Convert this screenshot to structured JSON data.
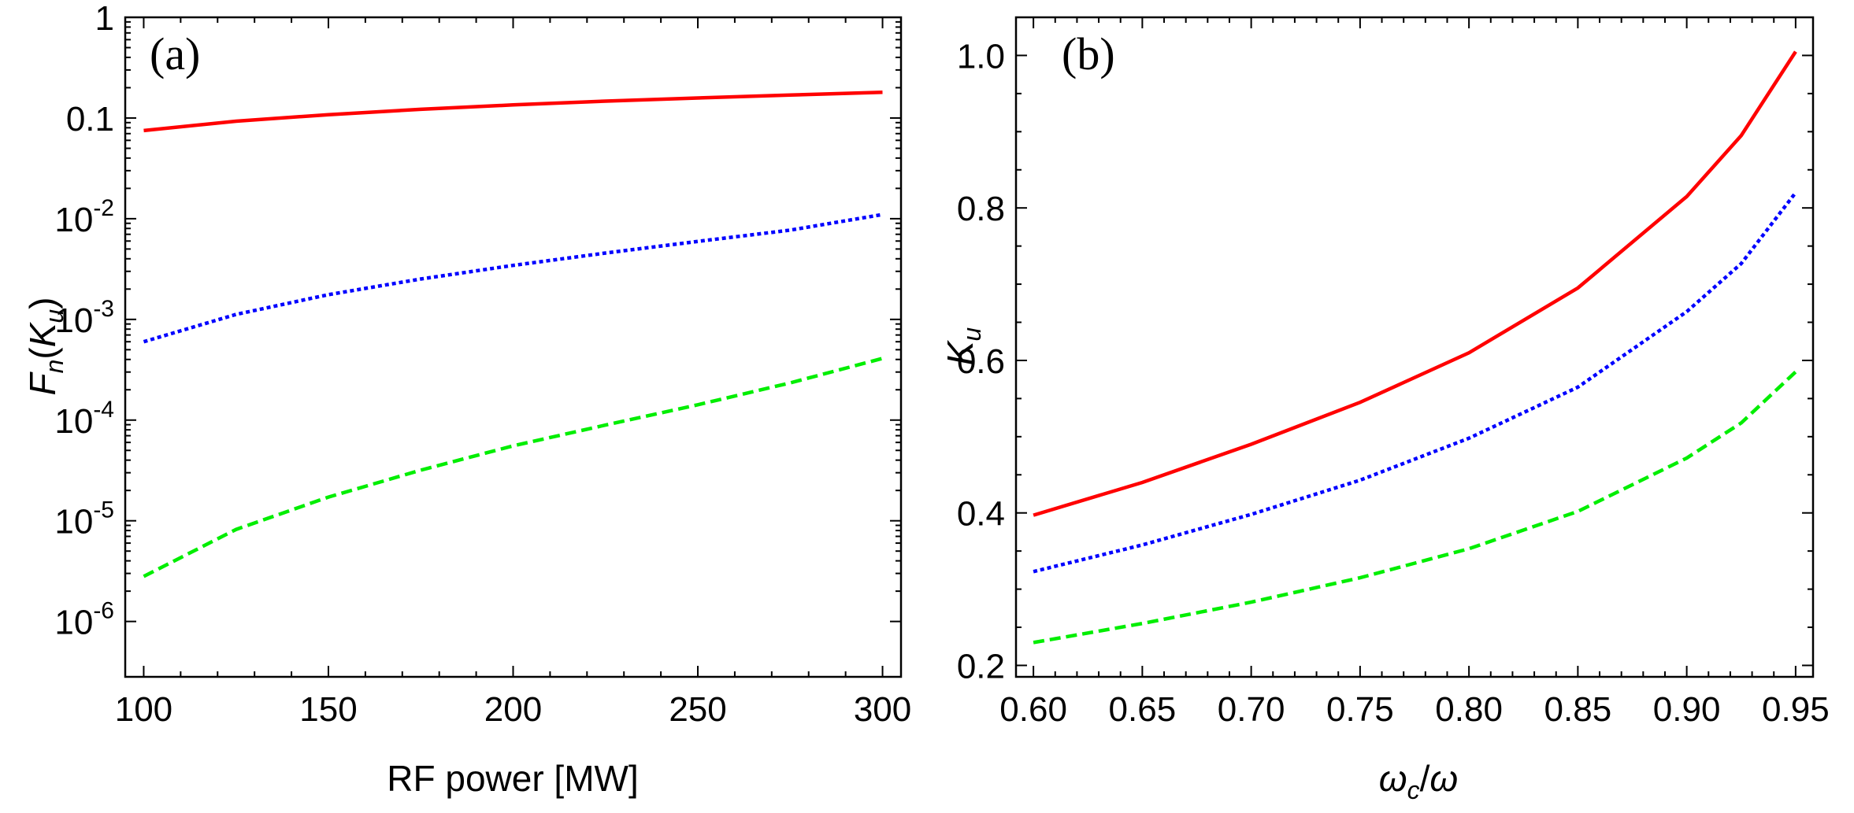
{
  "chart_data": [
    {
      "type": "line",
      "panel_label": "(a)",
      "xlabel": "RF power [MW]",
      "ylabel": {
        "base": "F",
        "sub1": "n",
        "open": "(",
        "kbase": "K",
        "sub2": "u",
        "close": ")"
      },
      "yscale": "log",
      "xlim": [
        95,
        305
      ],
      "ylim_log10": [
        -6.55,
        0
      ],
      "x_ticks": [
        100,
        150,
        200,
        250,
        300
      ],
      "x_tick_labels": [
        "100",
        "150",
        "200",
        "250",
        "300"
      ],
      "y_tick_labels": [
        {
          "exp": -6,
          "base": "10",
          "sup": "-6"
        },
        {
          "exp": -5,
          "base": "10",
          "sup": "-5"
        },
        {
          "exp": -4,
          "base": "10",
          "sup": "-4"
        },
        {
          "exp": -3,
          "base": "10",
          "sup": "-3"
        },
        {
          "exp": -2,
          "base": "10",
          "sup": "-2"
        },
        {
          "exp": -1,
          "base": "0.1",
          "sup": ""
        },
        {
          "exp": 0,
          "base": "1",
          "sup": ""
        }
      ],
      "x": [
        100,
        125,
        150,
        175,
        200,
        225,
        250,
        275,
        300
      ],
      "series": [
        {
          "name": "solid",
          "color": "#ff0000",
          "dash": "solid",
          "values": [
            0.075,
            0.093,
            0.108,
            0.122,
            0.135,
            0.147,
            0.158,
            0.169,
            0.18
          ]
        },
        {
          "name": "dotted",
          "color": "#0000ff",
          "dash": "dotted",
          "values": [
            0.0006,
            0.00112,
            0.00176,
            0.00252,
            0.00344,
            0.00456,
            0.00595,
            0.0077,
            0.011
          ]
        },
        {
          "name": "dashed",
          "color": "#00ee00",
          "dash": "dashed",
          "values": [
            2.8e-06,
            8.2e-06,
            1.72e-05,
            3.18e-05,
            5.55e-05,
            8.92e-05,
            0.000142,
            0.000234,
            0.00041
          ]
        }
      ]
    },
    {
      "type": "line",
      "panel_label": "(b)",
      "xlabel": {
        "a": "ω",
        "asub": "c",
        "slash": "/",
        "b": "ω"
      },
      "ylabel": {
        "base": "K",
        "sub": "u"
      },
      "yscale": "linear",
      "xlim": [
        0.592,
        0.958
      ],
      "ylim": [
        0.185,
        1.05
      ],
      "x_ticks": [
        0.6,
        0.65,
        0.7,
        0.75,
        0.8,
        0.85,
        0.9,
        0.95
      ],
      "x_tick_labels": [
        "0.60",
        "0.65",
        "0.70",
        "0.75",
        "0.80",
        "0.85",
        "0.90",
        "0.95"
      ],
      "y_ticks": [
        0.2,
        0.4,
        0.6,
        0.8,
        1.0
      ],
      "y_tick_labels": [
        "0.2",
        "0.4",
        "0.6",
        "0.8",
        "1.0"
      ],
      "x": [
        0.6,
        0.65,
        0.7,
        0.75,
        0.8,
        0.85,
        0.9,
        0.925,
        0.95
      ],
      "series": [
        {
          "name": "solid",
          "color": "#ff0000",
          "dash": "solid",
          "values": [
            0.397,
            0.44,
            0.49,
            0.545,
            0.61,
            0.695,
            0.815,
            0.895,
            1.005
          ]
        },
        {
          "name": "dotted",
          "color": "#0000ff",
          "dash": "dotted",
          "values": [
            0.323,
            0.358,
            0.398,
            0.443,
            0.498,
            0.565,
            0.664,
            0.727,
            0.82
          ]
        },
        {
          "name": "dashed",
          "color": "#00ee00",
          "dash": "dashed",
          "values": [
            0.23,
            0.255,
            0.283,
            0.315,
            0.353,
            0.402,
            0.472,
            0.518,
            0.585
          ]
        }
      ]
    }
  ]
}
